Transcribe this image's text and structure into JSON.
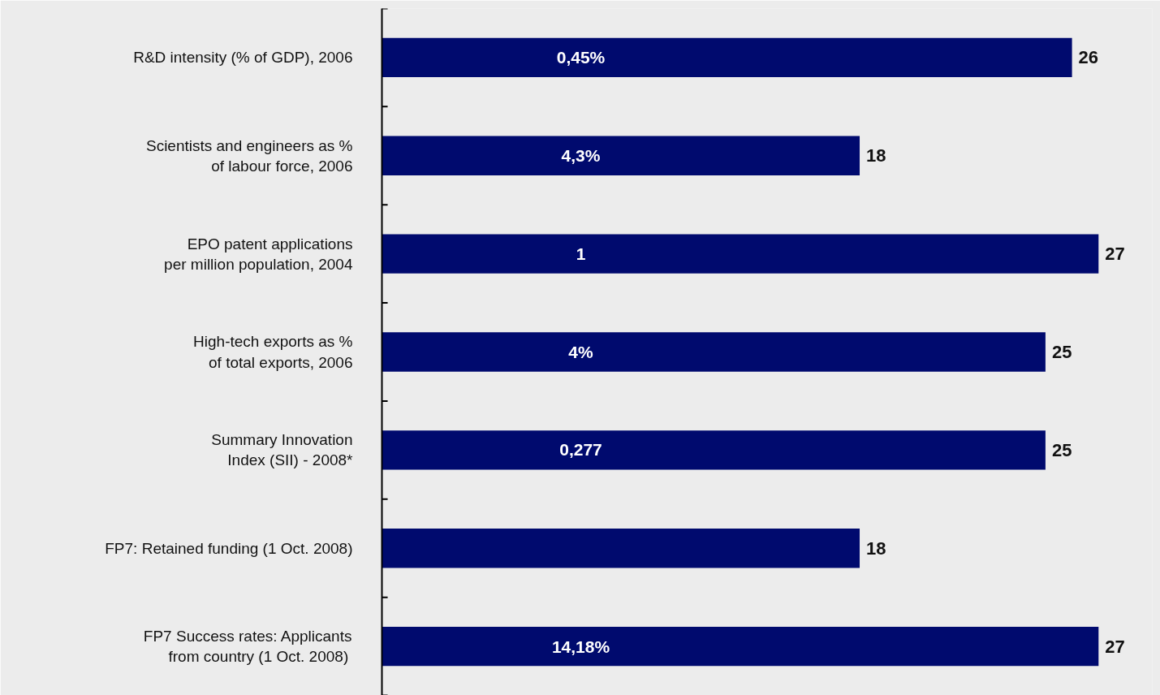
{
  "chart_data": {
    "type": "bar",
    "orientation": "horizontal",
    "categories": [
      "R&D intensity (% of GDP), 2006",
      "Scientists and engineers as %\nof labour force, 2006",
      "EPO patent applications\nper million population, 2004",
      "High-tech exports as %\nof total exports, 2006",
      "Summary Innovation\nIndex (SII) - 2008*",
      "FP7: Retained funding (1 Oct. 2008)",
      "FP7 Success rates: Applicants\nfrom country  (1 Oct. 2008)"
    ],
    "values": [
      26,
      18,
      27,
      25,
      25,
      18,
      27
    ],
    "color": "#000a6e",
    "value_labels": [
      "26",
      "18",
      "27",
      "25",
      "25",
      "18",
      "27"
    ],
    "grid": false,
    "annotations": [
      "0,45%",
      "4,3%",
      "1",
      "4%",
      "0,277",
      "14,18%"
    ]
  }
}
